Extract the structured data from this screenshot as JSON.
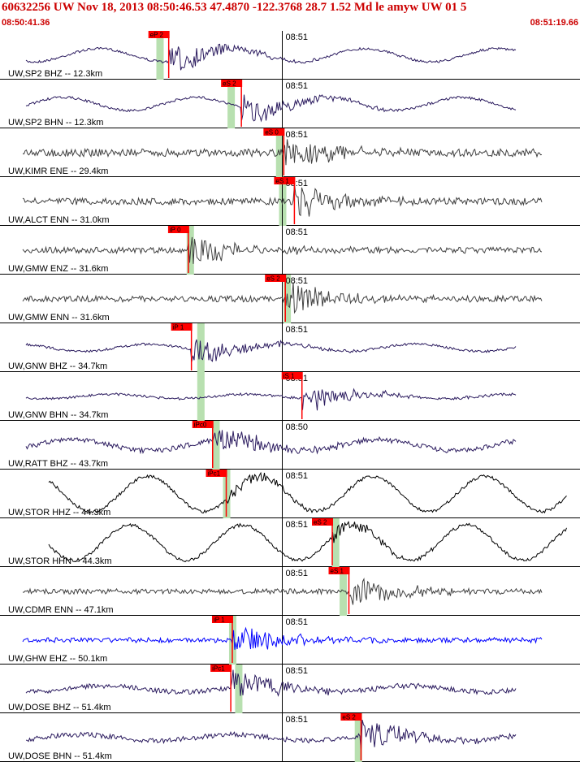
{
  "header": {
    "title": "60632256 UW Nov 18, 2013 08:50:46.53   47.4870 -122.3768 28.7 1.52 Md le amyw UW 01   5",
    "start_time": "08:50:41.36",
    "end_time": "08:51:19.66"
  },
  "colors": {
    "header_text": "#cc0000",
    "trace_dark": "#2a1a5e",
    "trace_gray": "#404040",
    "trace_black": "#000000",
    "trace_blue": "#0000ff",
    "pick_marker": "#ff0000",
    "window_band": "#b8e0b0"
  },
  "chart_data": {
    "type": "line",
    "title": "60632256 UW Nov 18, 2013 08:50:46.53   47.4870 -122.3768 28.7 1.52 Md le amyw UW 01   5",
    "x_range": [
      "08:50:41.36",
      "08:51:19.66"
    ],
    "channels": [
      {
        "label": "UW,SP2 BHZ -- 12.3km",
        "pick": "eP 2",
        "pick_time": "08:50:52.5",
        "band_time": "08:50:51.9",
        "color": "dark",
        "style": "smooth",
        "tick": "08:51",
        "amp": 0.45
      },
      {
        "label": "UW,SP2 BHN -- 12.3km",
        "pick": "eS 2",
        "pick_time": "08:50:57.3",
        "band_time": "08:50:56.6",
        "color": "dark",
        "style": "smooth",
        "tick": "08:51",
        "amp": 0.45
      },
      {
        "label": "UW,KIMR ENE -- 29.4km",
        "pick": "eS 0",
        "pick_time": "08:51:00.1",
        "band_time": "08:50:59.8",
        "color": "gray",
        "style": "noise",
        "tick": "08:51",
        "amp": 0.45
      },
      {
        "label": "UW,ALCT ENN -- 31.0km",
        "pick": "eS 1",
        "pick_time": "08:51:00.8",
        "band_time": "08:51:00.0",
        "color": "gray",
        "style": "noise",
        "tick": "08:51",
        "amp": 0.4
      },
      {
        "label": "UW,GMW ENZ -- 31.6km",
        "pick": "iP 0",
        "pick_time": "08:50:53.8",
        "band_time": "08:50:53.9",
        "color": "gray",
        "style": "noise",
        "tick": "08:51",
        "amp": 0.35
      },
      {
        "label": "UW,GMW ENN -- 31.6km",
        "pick": "eS 2",
        "pick_time": "08:51:00.2",
        "band_time": "08:51:00.3",
        "color": "gray",
        "style": "noise",
        "tick": "08:51",
        "amp": 0.35
      },
      {
        "label": "UW,GNW BHZ -- 34.7km",
        "pick": "iP 1",
        "pick_time": "08:50:54.0",
        "band_time": "08:50:54.6",
        "color": "dark",
        "style": "smooth",
        "tick": "08:51",
        "amp": 0.25
      },
      {
        "label": "UW,GNW BHN -- 34.7km",
        "pick": "iS 1",
        "pick_time": "08:51:01.3",
        "band_time": "08:50:54.6",
        "color": "dark",
        "style": "smooth",
        "tick": "08:51",
        "amp": 0.15
      },
      {
        "label": "UW,RATT BHZ -- 43.7km",
        "pick": "iPc0",
        "pick_time": "08:50:55.4",
        "band_time": "08:50:55.6",
        "color": "dark",
        "style": "mixed",
        "tick": "08:50",
        "amp": 0.45
      },
      {
        "label": "UW,STOR HHZ -- 44.3km",
        "pick": "iPc1",
        "pick_time": "08:50:56.3",
        "band_time": "08:50:56.3",
        "color": "black",
        "style": "wave",
        "tick": "08:51",
        "amp": 0.8
      },
      {
        "label": "UW,STOR HHN -- 44.3km",
        "pick": "eS 2",
        "pick_time": "08:51:03.3",
        "band_time": "08:51:03.5",
        "color": "black",
        "style": "wave",
        "tick": "08:51",
        "amp": 0.8
      },
      {
        "label": "UW,CDMR ENN -- 47.1km",
        "pick": "eS 1",
        "pick_time": "08:51:04.4",
        "band_time": "08:51:04.0",
        "color": "gray",
        "style": "noise",
        "tick": "08:51",
        "amp": 0.3
      },
      {
        "label": "UW,GHW EHZ -- 50.1km",
        "pick": "iP 1",
        "pick_time": "08:50:56.7",
        "band_time": "08:50:56.7",
        "color": "blue",
        "style": "noise",
        "tick": "08:51",
        "amp": 0.3
      },
      {
        "label": "UW,DOSE BHZ -- 51.4km",
        "pick": "iPc1",
        "pick_time": "08:50:56.6",
        "band_time": "08:50:57.1",
        "color": "dark",
        "style": "mixed",
        "tick": "08:51",
        "amp": 0.25
      },
      {
        "label": "UW,DOSE BHN -- 51.4km",
        "pick": "eS 2",
        "pick_time": "08:51:05.2",
        "band_time": "08:51:05.0",
        "color": "dark",
        "style": "mixed",
        "tick": "08:51",
        "amp": 0.25
      }
    ]
  }
}
